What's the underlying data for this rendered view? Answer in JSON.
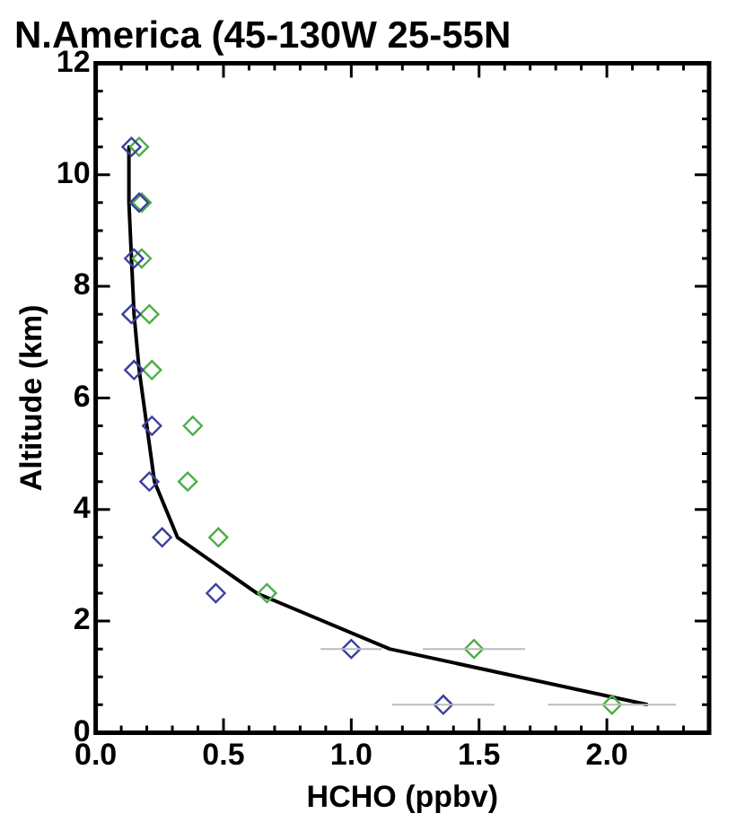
{
  "chart_data": {
    "type": "scatter",
    "title": "N.America (45-130W 25-55N",
    "xlabel": "HCHO (ppbv)",
    "ylabel": "Altitude (km)",
    "xlim": [
      0,
      2.4
    ],
    "ylim": [
      0,
      12
    ],
    "xticks": [
      {
        "value": 0,
        "label": "0.0"
      },
      {
        "value": 0.1,
        "label": null
      },
      {
        "value": 0.2,
        "label": null
      },
      {
        "value": 0.3,
        "label": null
      },
      {
        "value": 0.4,
        "label": null
      },
      {
        "value": 0.5,
        "label": "0.5"
      },
      {
        "value": 0.6,
        "label": null
      },
      {
        "value": 0.7,
        "label": null
      },
      {
        "value": 0.8,
        "label": null
      },
      {
        "value": 0.9,
        "label": null
      },
      {
        "value": 1,
        "label": "1.0"
      },
      {
        "value": 1.1,
        "label": null
      },
      {
        "value": 1.2,
        "label": null
      },
      {
        "value": 1.3,
        "label": null
      },
      {
        "value": 1.4,
        "label": null
      },
      {
        "value": 1.5,
        "label": "1.5"
      },
      {
        "value": 1.6,
        "label": null
      },
      {
        "value": 1.7,
        "label": null
      },
      {
        "value": 1.8,
        "label": null
      },
      {
        "value": 1.9,
        "label": null
      },
      {
        "value": 2,
        "label": "2.0"
      },
      {
        "value": 2.1,
        "label": null
      },
      {
        "value": 2.2,
        "label": null
      },
      {
        "value": 2.3,
        "label": null
      },
      {
        "value": 2.4,
        "label": null
      }
    ],
    "yticks": [
      0,
      {
        "value": 0.5,
        "label": null
      },
      {
        "value": 1,
        "label": null
      },
      {
        "value": 1.5,
        "label": null
      },
      2,
      {
        "value": 2.5,
        "label": null
      },
      {
        "value": 3,
        "label": null
      },
      {
        "value": 3.5,
        "label": null
      },
      4,
      {
        "value": 4.5,
        "label": null
      },
      {
        "value": 5,
        "label": null
      },
      {
        "value": 5.5,
        "label": null
      },
      6,
      {
        "value": 6.5,
        "label": null
      },
      {
        "value": 7,
        "label": null
      },
      {
        "value": 7.5,
        "label": null
      },
      8,
      {
        "value": 8.5,
        "label": null
      },
      {
        "value": 9,
        "label": null
      },
      {
        "value": 9.5,
        "label": null
      },
      10,
      {
        "value": 10.5,
        "label": null
      },
      {
        "value": 11,
        "label": null
      },
      {
        "value": 11.5,
        "label": null
      },
      12
    ],
    "grid": false,
    "legend": false,
    "marker": "diamond",
    "series": [
      {
        "type": "scatter",
        "color": "#3a3f9c",
        "x": [
          0.14,
          0.17,
          0.15,
          0.14,
          0.15,
          0.22,
          0.21,
          0.26,
          0.47,
          1.0,
          1.36
        ],
        "values": [
          10.5,
          9.5,
          8.5,
          7.5,
          6.5,
          5.5,
          4.5,
          3.5,
          2.5,
          1.5,
          0.5
        ],
        "xerrors": [
          null,
          null,
          null,
          null,
          null,
          null,
          null,
          null,
          null,
          0.12,
          0.2
        ]
      },
      {
        "type": "scatter",
        "color": "#4caf45",
        "x": [
          0.17,
          0.18,
          0.18,
          0.21,
          0.22,
          0.38,
          0.36,
          0.48,
          0.67,
          1.48,
          2.02
        ],
        "values": [
          10.5,
          9.5,
          8.5,
          7.5,
          6.5,
          5.5,
          4.5,
          3.5,
          2.5,
          1.5,
          0.5
        ],
        "xerrors": [
          null,
          null,
          null,
          null,
          null,
          null,
          null,
          null,
          null,
          0.2,
          0.25
        ]
      },
      {
        "type": "line",
        "color": "#000000",
        "marker": "none",
        "line_style": "solid",
        "x": [
          0.13,
          0.13,
          0.14,
          0.15,
          0.17,
          0.2,
          0.23,
          0.32,
          0.63,
          1.15,
          2.16
        ],
        "values": [
          10.5,
          9.5,
          8.5,
          7.5,
          6.5,
          5.5,
          4.5,
          3.5,
          2.5,
          1.5,
          0.5
        ]
      }
    ]
  }
}
